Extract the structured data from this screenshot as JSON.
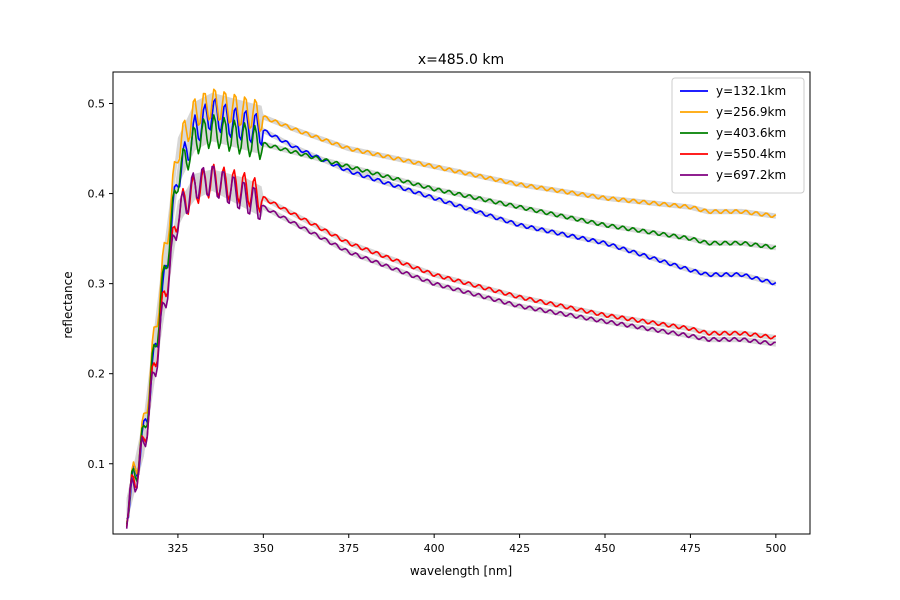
{
  "chart_data": {
    "type": "line",
    "title": "x=485.0 km",
    "xlabel": "wavelength [nm]",
    "ylabel": "reflectance",
    "xlim": [
      306,
      510
    ],
    "ylim": [
      0.022,
      0.535
    ],
    "xticks": [
      325,
      350,
      375,
      400,
      425,
      450,
      475,
      500
    ],
    "yticks": [
      0.1,
      0.2,
      0.3,
      0.4,
      0.5
    ],
    "legend_position": "top-right",
    "grid": false,
    "uncertainty_band_color": "#d3d3d3",
    "series": [
      {
        "name": "y=132.1km",
        "color": "#0000ff",
        "x": [
          310,
          315,
          320,
          325,
          330,
          335,
          340,
          345,
          350,
          360,
          375,
          400,
          425,
          450,
          475,
          480,
          490,
          500
        ],
        "y": [
          0.05,
          0.13,
          0.27,
          0.42,
          0.47,
          0.49,
          0.48,
          0.475,
          0.47,
          0.45,
          0.425,
          0.395,
          0.365,
          0.345,
          0.315,
          0.31,
          0.31,
          0.3
        ]
      },
      {
        "name": "y=256.9km",
        "color": "#ffa500",
        "x": [
          310,
          315,
          320,
          325,
          330,
          335,
          340,
          345,
          350,
          360,
          375,
          400,
          425,
          450,
          475,
          480,
          490,
          500
        ],
        "y": [
          0.05,
          0.14,
          0.3,
          0.45,
          0.49,
          0.5,
          0.495,
          0.49,
          0.485,
          0.47,
          0.45,
          0.43,
          0.41,
          0.395,
          0.385,
          0.38,
          0.38,
          0.375
        ]
      },
      {
        "name": "y=403.6km",
        "color": "#008000",
        "x": [
          310,
          315,
          320,
          325,
          330,
          335,
          340,
          345,
          350,
          360,
          375,
          400,
          425,
          450,
          475,
          480,
          490,
          500
        ],
        "y": [
          0.05,
          0.13,
          0.28,
          0.42,
          0.46,
          0.47,
          0.465,
          0.46,
          0.455,
          0.445,
          0.43,
          0.405,
          0.385,
          0.365,
          0.35,
          0.345,
          0.345,
          0.34
        ]
      },
      {
        "name": "y=550.4km",
        "color": "#ff0000",
        "x": [
          310,
          315,
          320,
          325,
          330,
          335,
          340,
          345,
          350,
          360,
          375,
          400,
          425,
          450,
          475,
          480,
          490,
          500
        ],
        "y": [
          0.048,
          0.12,
          0.26,
          0.38,
          0.405,
          0.415,
          0.41,
          0.405,
          0.395,
          0.375,
          0.345,
          0.31,
          0.285,
          0.265,
          0.25,
          0.245,
          0.245,
          0.24
        ]
      },
      {
        "name": "y=697.2km",
        "color": "#800080",
        "x": [
          310,
          315,
          320,
          325,
          330,
          335,
          340,
          345,
          350,
          360,
          375,
          400,
          425,
          450,
          475,
          480,
          490,
          500
        ],
        "y": [
          0.045,
          0.12,
          0.25,
          0.375,
          0.41,
          0.415,
          0.405,
          0.395,
          0.385,
          0.365,
          0.335,
          0.3,
          0.275,
          0.258,
          0.242,
          0.238,
          0.238,
          0.233
        ]
      }
    ]
  }
}
